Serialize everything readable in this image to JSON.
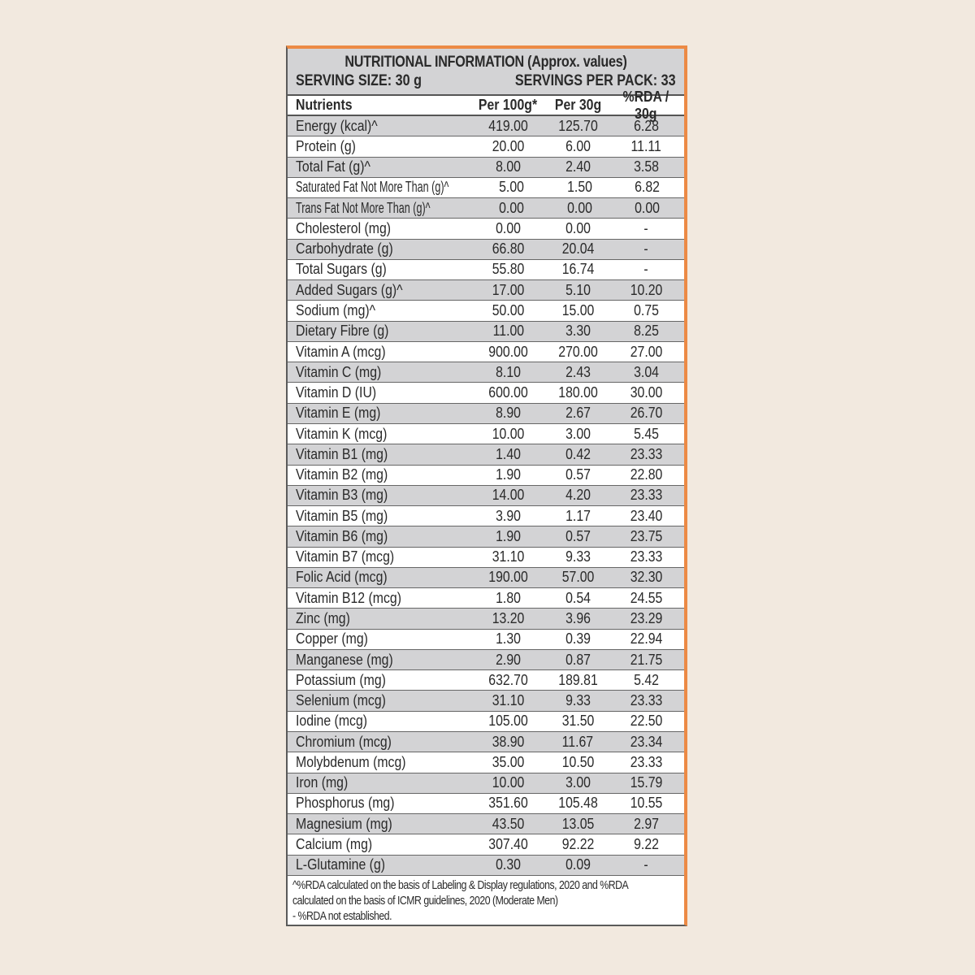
{
  "header": {
    "title": "NUTRITIONAL INFORMATION (Approx. values)",
    "serving_size": "SERVING SIZE: 30 g",
    "servings_per_pack": "SERVINGS PER PACK: 33"
  },
  "columns": [
    "Nutrients",
    "Per 100g*",
    "Per 30g",
    "%RDA / 30g"
  ],
  "rows": [
    [
      "Energy (kcal)^",
      "419.00",
      "125.70",
      "6.28"
    ],
    [
      "Protein (g)",
      "20.00",
      "6.00",
      "11.11"
    ],
    [
      "Total Fat (g)^",
      "8.00",
      "2.40",
      "3.58"
    ],
    [
      "Saturated Fat Not More Than (g)^",
      "5.00",
      "1.50",
      "6.82"
    ],
    [
      "Trans Fat Not More Than (g)^",
      "0.00",
      "0.00",
      "0.00"
    ],
    [
      "Cholesterol (mg)",
      "0.00",
      "0.00",
      "-"
    ],
    [
      "Carbohydrate (g)",
      "66.80",
      "20.04",
      "-"
    ],
    [
      "Total Sugars (g)",
      "55.80",
      "16.74",
      "-"
    ],
    [
      "Added Sugars (g)^",
      "17.00",
      "5.10",
      "10.20"
    ],
    [
      "Sodium (mg)^",
      "50.00",
      "15.00",
      "0.75"
    ],
    [
      "Dietary Fibre (g)",
      "11.00",
      "3.30",
      "8.25"
    ],
    [
      "Vitamin A (mcg)",
      "900.00",
      "270.00",
      "27.00"
    ],
    [
      "Vitamin C (mg)",
      "8.10",
      "2.43",
      "3.04"
    ],
    [
      "Vitamin D (IU)",
      "600.00",
      "180.00",
      "30.00"
    ],
    [
      "Vitamin E (mg)",
      "8.90",
      "2.67",
      "26.70"
    ],
    [
      "Vitamin K (mcg)",
      "10.00",
      "3.00",
      "5.45"
    ],
    [
      "Vitamin B1 (mg)",
      "1.40",
      "0.42",
      "23.33"
    ],
    [
      "Vitamin B2 (mg)",
      "1.90",
      "0.57",
      "22.80"
    ],
    [
      "Vitamin B3 (mg)",
      "14.00",
      "4.20",
      "23.33"
    ],
    [
      "Vitamin B5 (mg)",
      "3.90",
      "1.17",
      "23.40"
    ],
    [
      "Vitamin B6 (mg)",
      "1.90",
      "0.57",
      "23.75"
    ],
    [
      "Vitamin B7 (mcg)",
      "31.10",
      "9.33",
      "23.33"
    ],
    [
      "Folic Acid (mcg)",
      "190.00",
      "57.00",
      "32.30"
    ],
    [
      "Vitamin B12 (mcg)",
      "1.80",
      "0.54",
      "24.55"
    ],
    [
      "Zinc (mg)",
      "13.20",
      "3.96",
      "23.29"
    ],
    [
      "Copper (mg)",
      "1.30",
      "0.39",
      "22.94"
    ],
    [
      "Manganese (mg)",
      "2.90",
      "0.87",
      "21.75"
    ],
    [
      "Potassium (mg)",
      "632.70",
      "189.81",
      "5.42"
    ],
    [
      "Selenium (mcg)",
      "31.10",
      "9.33",
      "23.33"
    ],
    [
      "Iodine (mcg)",
      "105.00",
      "31.50",
      "22.50"
    ],
    [
      "Chromium (mcg)",
      "38.90",
      "11.67",
      "23.34"
    ],
    [
      "Molybdenum (mcg)",
      "35.00",
      "10.50",
      "23.33"
    ],
    [
      "Iron (mg)",
      "10.00",
      "3.00",
      "15.79"
    ],
    [
      "Phosphorus (mg)",
      "351.60",
      "105.48",
      "10.55"
    ],
    [
      "Magnesium (mg)",
      "43.50",
      "13.05",
      "2.97"
    ],
    [
      "Calcium (mg)",
      "307.40",
      "92.22",
      "9.22"
    ],
    [
      "L-Glutamine (g)",
      "0.30",
      "0.09",
      "-"
    ]
  ],
  "footnotes": [
    "^%RDA calculated on the basis of Labeling & Display regulations, 2020 and %RDA",
    "calculated on the basis of ICMR guidelines, 2020 (Moderate Men)",
    "- %RDA not established."
  ],
  "colors": {
    "background": "#f2e9df",
    "band": "#d3d3d5",
    "accent_border": "#ec8a45"
  }
}
